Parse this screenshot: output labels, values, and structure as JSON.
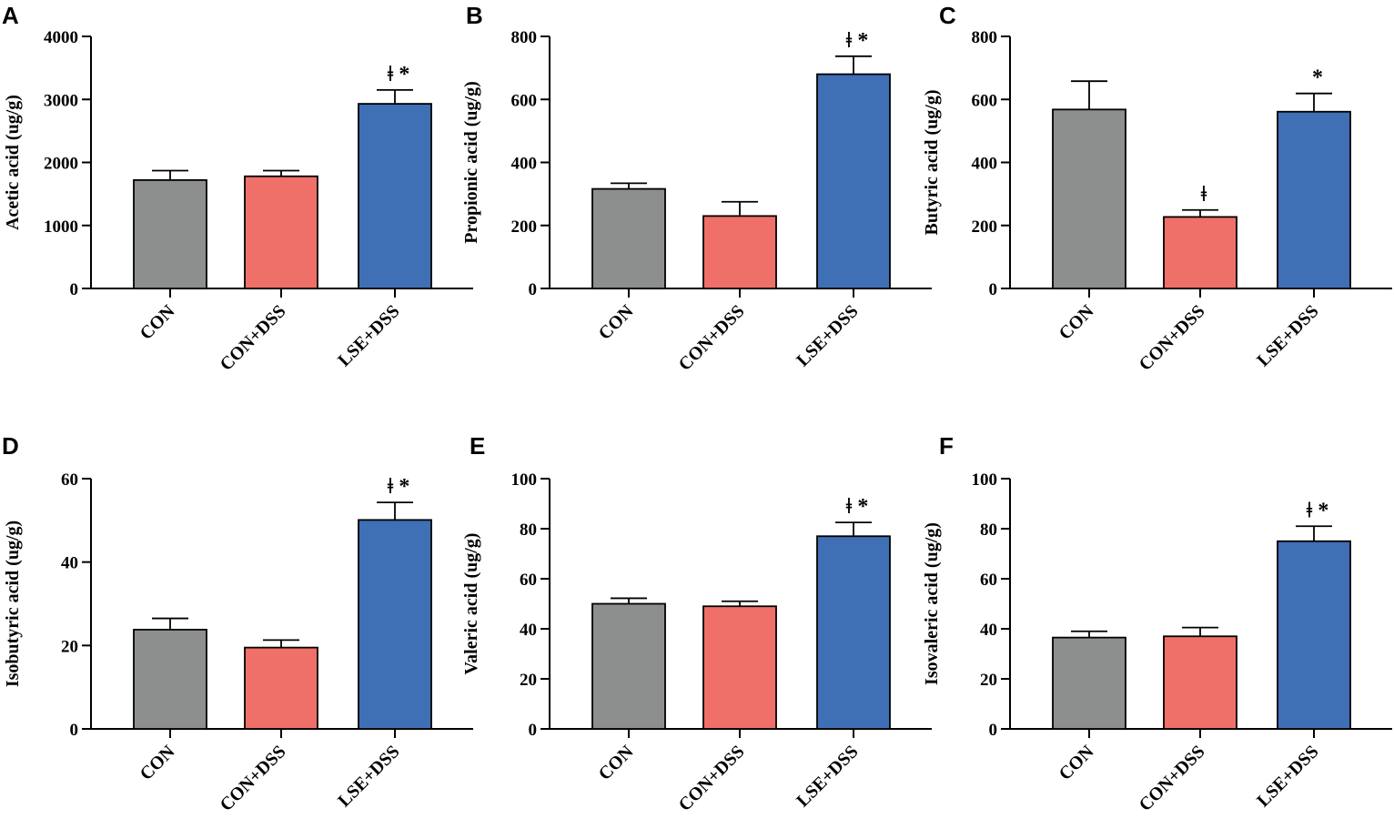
{
  "chart_data": [
    {
      "panel": "A",
      "type": "bar",
      "categories": [
        "CON",
        "CON+DSS",
        "LSE+DSS"
      ],
      "values": [
        1720,
        1780,
        2930
      ],
      "errors": [
        150,
        90,
        220
      ],
      "significance": [
        "",
        "",
        "ǂ *"
      ],
      "ylabel": "Acetic acid (ug/g)",
      "ylim": [
        0,
        4000
      ],
      "yticks": [
        0,
        1000,
        2000,
        3000,
        4000
      ]
    },
    {
      "panel": "B",
      "type": "bar",
      "categories": [
        "CON",
        "CON+DSS",
        "LSE+DSS"
      ],
      "values": [
        316,
        230,
        680
      ],
      "errors": [
        18,
        45,
        57
      ],
      "significance": [
        "",
        "",
        "ǂ *"
      ],
      "ylabel": "Propionic acid (ug/g)",
      "ylim": [
        0,
        800
      ],
      "yticks": [
        0,
        200,
        400,
        600,
        800
      ]
    },
    {
      "panel": "C",
      "type": "bar",
      "categories": [
        "CON",
        "CON+DSS",
        "LSE+DSS"
      ],
      "values": [
        568,
        227,
        561
      ],
      "errors": [
        90,
        22,
        58
      ],
      "significance": [
        "",
        "ǂ",
        "*"
      ],
      "ylabel": "Butyric acid (ug/g)",
      "ylim": [
        0,
        800
      ],
      "yticks": [
        0,
        200,
        400,
        600,
        800
      ]
    },
    {
      "panel": "D",
      "type": "bar",
      "categories": [
        "CON",
        "CON+DSS",
        "LSE+DSS"
      ],
      "values": [
        23.8,
        19.5,
        50.1
      ],
      "errors": [
        2.7,
        1.8,
        4.2
      ],
      "significance": [
        "",
        "",
        "ǂ *"
      ],
      "ylabel": "Isobutyric acid (ug/g)",
      "ylim": [
        0,
        60
      ],
      "yticks": [
        0,
        20,
        40,
        60
      ]
    },
    {
      "panel": "E",
      "type": "bar",
      "categories": [
        "CON",
        "CON+DSS",
        "LSE+DSS"
      ],
      "values": [
        50,
        49,
        77
      ],
      "errors": [
        2.2,
        2,
        5.5
      ],
      "significance": [
        "",
        "",
        "ǂ *"
      ],
      "ylabel": "Valeric acid (ug/g)",
      "ylim": [
        0,
        100
      ],
      "yticks": [
        0,
        20,
        40,
        60,
        80,
        100
      ]
    },
    {
      "panel": "F",
      "type": "bar",
      "categories": [
        "CON",
        "CON+DSS",
        "LSE+DSS"
      ],
      "values": [
        36.5,
        37,
        75
      ],
      "errors": [
        2.5,
        3.5,
        6
      ],
      "significance": [
        "",
        "",
        "ǂ *"
      ],
      "ylabel": "Isovaleric acid (ug/g)",
      "ylim": [
        0,
        100
      ],
      "yticks": [
        0,
        20,
        40,
        60,
        80,
        100
      ]
    }
  ],
  "colors": {
    "CON": "#8c8f8e",
    "CON+DSS": "#ef6f69",
    "LSE+DSS": "#3f6fb4"
  }
}
